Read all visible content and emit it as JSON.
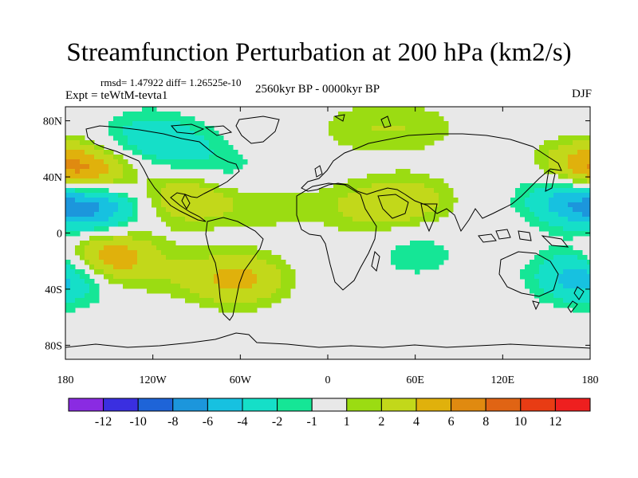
{
  "header": {
    "title": "Streamfunction Perturbation at 200 hPa (km2/s)",
    "stats": "rmsd= 1.47922 diff= 1.26525e-10",
    "experiment": "Expt = teWtM-tevta1",
    "period": "2560kyr BP - 0000kyr BP",
    "season": "DJF"
  },
  "chart_data": {
    "type": "heatmap",
    "title": "Streamfunction Perturbation at 200 hPa (km2/s)",
    "projection": "cylindrical-equidistant",
    "xlabel": "",
    "ylabel": "",
    "xlim": [
      -180,
      180
    ],
    "ylim": [
      -90,
      90
    ],
    "x_ticks": [
      {
        "value": -180,
        "label": "180"
      },
      {
        "value": -120,
        "label": "120W"
      },
      {
        "value": -60,
        "label": "60W"
      },
      {
        "value": 0,
        "label": "0"
      },
      {
        "value": 60,
        "label": "60E"
      },
      {
        "value": 120,
        "label": "120E"
      },
      {
        "value": 180,
        "label": "180"
      }
    ],
    "y_ticks": [
      {
        "value": 80,
        "label": "80N"
      },
      {
        "value": 40,
        "label": "40N"
      },
      {
        "value": 0,
        "label": "0"
      },
      {
        "value": -40,
        "label": "40S"
      },
      {
        "value": -80,
        "label": "80S"
      }
    ],
    "levels": [
      -12,
      -10,
      -8,
      -6,
      -4,
      -2,
      -1,
      1,
      2,
      4,
      6,
      8,
      10,
      12
    ],
    "colorbar_labels": [
      "-12",
      "-10",
      "-8",
      "-6",
      "-4",
      "-2",
      "-1",
      "1",
      "2",
      "4",
      "6",
      "8",
      "10",
      "12"
    ],
    "colors": [
      "#8a2be2",
      "#3a2fe0",
      "#1e64d8",
      "#1c96dc",
      "#17c1e0",
      "#15dfc8",
      "#15e696",
      "#e8e8e8",
      "#9bdc12",
      "#c2d81a",
      "#e0b10c",
      "#e08a10",
      "#e06414",
      "#e83c14",
      "#ee1f1f"
    ],
    "anomaly_centers": [
      {
        "lon": -165,
        "lat": 40,
        "value": 5.5
      },
      {
        "lon": -162,
        "lat": 20,
        "value": -7
      },
      {
        "lon": -150,
        "lat": -18,
        "value": 6
      },
      {
        "lon": -125,
        "lat": 70,
        "value": -2.5
      },
      {
        "lon": -100,
        "lat": 60,
        "value": -2
      },
      {
        "lon": -95,
        "lat": 25,
        "value": 4
      },
      {
        "lon": -70,
        "lat": 42,
        "value": -1.5
      },
      {
        "lon": -42,
        "lat": 20,
        "value": 1.6
      },
      {
        "lon": -60,
        "lat": -33,
        "value": 4.5
      },
      {
        "lon": -100,
        "lat": -30,
        "value": 1.3
      },
      {
        "lon": 20,
        "lat": 75,
        "value": 1.5
      },
      {
        "lon": 60,
        "lat": 75,
        "value": 1.6
      },
      {
        "lon": 55,
        "lat": 23,
        "value": 3
      },
      {
        "lon": 20,
        "lat": 18,
        "value": 2
      },
      {
        "lon": 62,
        "lat": -15,
        "value": -1.6
      },
      {
        "lon": 165,
        "lat": 25,
        "value": -5
      },
      {
        "lon": 175,
        "lat": 48,
        "value": 4
      },
      {
        "lon": 170,
        "lat": -30,
        "value": -3.5
      },
      {
        "lon": -175,
        "lat": -33,
        "value": -2.5
      }
    ]
  },
  "icons": {
    "map": "world-map-coastlines"
  }
}
